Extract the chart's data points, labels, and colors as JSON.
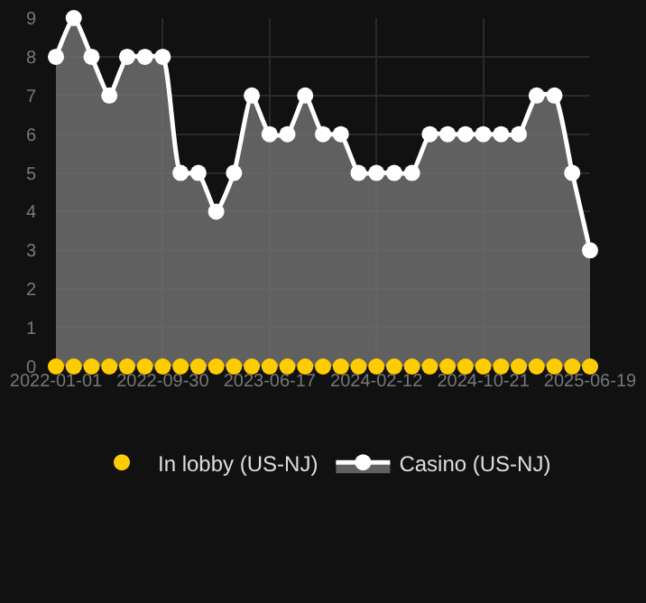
{
  "chart_data": {
    "type": "area",
    "categories": [
      "2022-01-01",
      null,
      null,
      null,
      null,
      null,
      "2022-09-30",
      null,
      null,
      null,
      null,
      null,
      "2023-06-17",
      null,
      null,
      null,
      null,
      null,
      "2024-02-12",
      null,
      null,
      null,
      null,
      null,
      "2024-10-21",
      null,
      null,
      null,
      null,
      null,
      "2025-06-19"
    ],
    "series": [
      {
        "name": "In lobby (US-NJ)",
        "type": "scatter",
        "color": "#ffcc00",
        "values": [
          0,
          0,
          0,
          0,
          0,
          0,
          0,
          0,
          0,
          0,
          0,
          0,
          0,
          0,
          0,
          0,
          0,
          0,
          0,
          0,
          0,
          0,
          0,
          0,
          0,
          0,
          0,
          0,
          0,
          0,
          0
        ]
      },
      {
        "name": "Casino (US-NJ)",
        "color": "#ffffff",
        "values": [
          8,
          9,
          8,
          7,
          8,
          8,
          8,
          5,
          5,
          4,
          5,
          7,
          6,
          6,
          7,
          6,
          6,
          5,
          5,
          5,
          5,
          6,
          6,
          6,
          6,
          6,
          6,
          7,
          7,
          5,
          3
        ]
      }
    ],
    "ylim": [
      0,
      9
    ],
    "yticks": [
      0,
      1,
      2,
      3,
      4,
      5,
      6,
      7,
      8,
      9
    ],
    "grid": true,
    "legend": "bottom",
    "marker": "circle",
    "line_style": "solid"
  }
}
